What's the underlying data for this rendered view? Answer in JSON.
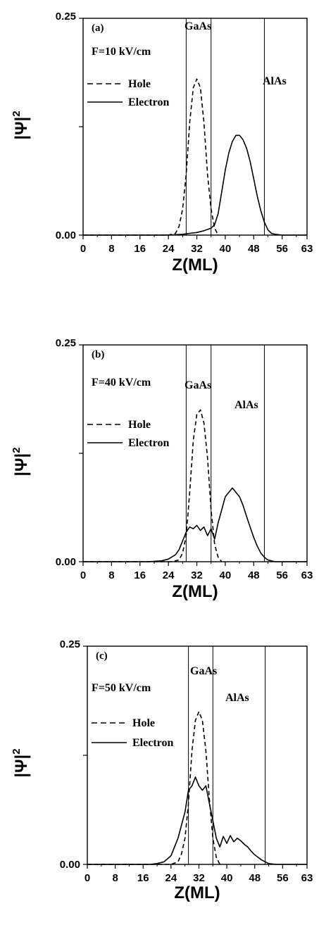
{
  "chart_data": [
    {
      "type": "line",
      "panel_label": "(a)",
      "field_label": "F=10 kV/cm",
      "region_labels": [
        "GaAs",
        "AlAs"
      ],
      "legend": [
        "Hole",
        "Electron"
      ],
      "xlabel": "Z(ML)",
      "ylabel": "|Ψ|",
      "ylabel_superscript": "2",
      "xlim": [
        0,
        63
      ],
      "ylim": [
        0,
        0.25
      ],
      "x_ticks": [
        0,
        8,
        16,
        24,
        32,
        40,
        48,
        56,
        63
      ],
      "y_tick_labels": [
        "0.00",
        "0.25"
      ],
      "interfaces": [
        29,
        36,
        51
      ],
      "series": [
        {
          "name": "Hole",
          "style": "dashed",
          "x": [
            0,
            24,
            26,
            27,
            28,
            29,
            30,
            31,
            32,
            33,
            34,
            35,
            36,
            37,
            38
          ],
          "y": [
            0,
            0,
            0.002,
            0.01,
            0.03,
            0.07,
            0.13,
            0.17,
            0.18,
            0.17,
            0.13,
            0.07,
            0.03,
            0.008,
            0
          ]
        },
        {
          "name": "Electron",
          "style": "solid",
          "x": [
            0,
            24,
            28,
            30,
            32,
            34,
            36,
            37,
            38,
            39,
            40,
            41,
            42,
            43,
            44,
            45,
            46,
            47,
            48,
            49,
            50,
            51,
            52,
            53,
            54,
            56,
            63
          ],
          "y": [
            0,
            0,
            0.001,
            0.002,
            0.003,
            0.005,
            0.008,
            0.012,
            0.025,
            0.05,
            0.075,
            0.095,
            0.108,
            0.115,
            0.115,
            0.11,
            0.1,
            0.085,
            0.065,
            0.045,
            0.028,
            0.015,
            0.006,
            0.002,
            0.001,
            0,
            0
          ]
        }
      ]
    },
    {
      "type": "line",
      "panel_label": "(b)",
      "field_label": "F=40 kV/cm",
      "region_labels": [
        "GaAs",
        "AlAs"
      ],
      "legend": [
        "Hole",
        "Electron"
      ],
      "xlabel": "Z(ML)",
      "ylabel": "|Ψ|",
      "ylabel_superscript": "2",
      "xlim": [
        0,
        63
      ],
      "ylim": [
        0,
        0.25
      ],
      "x_ticks": [
        0,
        8,
        16,
        24,
        32,
        40,
        48,
        56,
        63
      ],
      "y_tick_labels": [
        "0.00",
        "0.25"
      ],
      "interfaces": [
        29,
        36,
        51
      ],
      "series": [
        {
          "name": "Hole",
          "style": "dashed",
          "x": [
            0,
            25,
            27,
            28,
            29,
            30,
            31,
            32,
            33,
            34,
            35,
            36,
            37,
            38,
            39
          ],
          "y": [
            0,
            0,
            0.002,
            0.01,
            0.03,
            0.08,
            0.14,
            0.17,
            0.175,
            0.16,
            0.12,
            0.06,
            0.02,
            0.005,
            0
          ]
        },
        {
          "name": "Electron",
          "style": "solid",
          "x": [
            0,
            18,
            22,
            24,
            26,
            27,
            28,
            29,
            30,
            31,
            32,
            33,
            34,
            35,
            36,
            37,
            38,
            39,
            40,
            41,
            42,
            43,
            44,
            45,
            46,
            47,
            48,
            49,
            50,
            51,
            52,
            53,
            54,
            56,
            63
          ],
          "y": [
            0,
            0,
            0.001,
            0.003,
            0.008,
            0.014,
            0.024,
            0.034,
            0.04,
            0.038,
            0.042,
            0.036,
            0.04,
            0.03,
            0.038,
            0.026,
            0.045,
            0.06,
            0.075,
            0.08,
            0.085,
            0.08,
            0.075,
            0.065,
            0.052,
            0.04,
            0.028,
            0.018,
            0.01,
            0.005,
            0.002,
            0.001,
            0,
            0,
            0
          ]
        }
      ]
    },
    {
      "type": "line",
      "panel_label": "(c)",
      "field_label": "F=50 kV/cm",
      "region_labels": [
        "GaAs",
        "AlAs"
      ],
      "legend": [
        "Hole",
        "Electron"
      ],
      "xlabel": "Z(ML)",
      "ylabel": "|Ψ|",
      "ylabel_superscript": "2",
      "xlim": [
        0,
        63
      ],
      "ylim": [
        0,
        0.25
      ],
      "x_ticks": [
        0,
        8,
        16,
        24,
        32,
        40,
        48,
        56,
        63
      ],
      "y_tick_labels": [
        "0.00",
        "0.25"
      ],
      "interfaces": [
        29,
        36,
        51
      ],
      "series": [
        {
          "name": "Hole",
          "style": "dashed",
          "x": [
            0,
            24,
            26,
            27,
            28,
            29,
            30,
            31,
            32,
            33,
            34,
            35,
            36,
            37,
            38
          ],
          "y": [
            0,
            0,
            0.003,
            0.012,
            0.03,
            0.07,
            0.13,
            0.165,
            0.175,
            0.165,
            0.13,
            0.075,
            0.03,
            0.008,
            0
          ]
        },
        {
          "name": "Electron",
          "style": "solid",
          "x": [
            0,
            18,
            20,
            22,
            24,
            26,
            28,
            29,
            30,
            31,
            32,
            33,
            34,
            35,
            36,
            37,
            38,
            39,
            40,
            41,
            42,
            43,
            44,
            45,
            46,
            47,
            48,
            49,
            50,
            51,
            52,
            54,
            63
          ],
          "y": [
            0,
            0,
            0.001,
            0.003,
            0.01,
            0.03,
            0.06,
            0.085,
            0.09,
            0.1,
            0.09,
            0.085,
            0.09,
            0.07,
            0.05,
            0.03,
            0.02,
            0.032,
            0.024,
            0.033,
            0.026,
            0.03,
            0.027,
            0.023,
            0.02,
            0.015,
            0.011,
            0.008,
            0.005,
            0.003,
            0.001,
            0,
            0
          ]
        }
      ]
    }
  ]
}
